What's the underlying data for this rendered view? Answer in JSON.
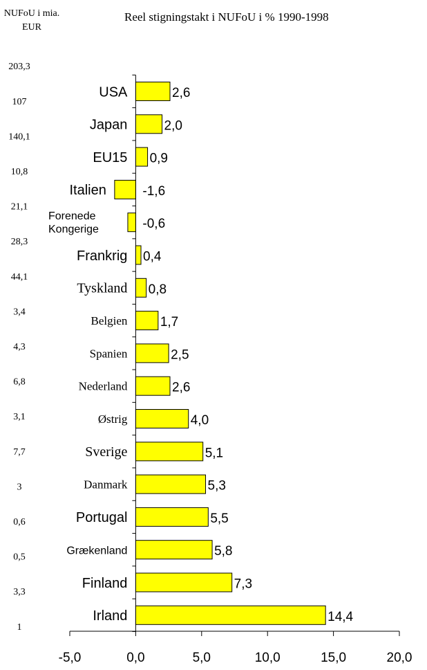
{
  "chart_data": {
    "type": "barh",
    "title": "Reel stigningstakt i NUFoU i % 1990-1998",
    "spending": {
      "title": [
        "NUFoU i mia.",
        "EUR"
      ],
      "values": [
        203.3,
        107,
        140.1,
        10.8,
        21.1,
        28.3,
        44.1,
        3.4,
        4.3,
        6.8,
        3.1,
        7.7,
        3,
        0.6,
        0.5,
        3.3,
        1
      ],
      "value_labels": [
        "203,3",
        "107",
        "140,1",
        "10,8",
        "21,1",
        "28,3",
        "44,1",
        "3,4",
        "4,3",
        "6,8",
        "3,1",
        "7,7",
        "3",
        "0,6",
        "0,5",
        "3,3",
        "1"
      ]
    },
    "categories": [
      "USA",
      "Japan",
      "EU15",
      "Italien",
      "Forenede Kongerige",
      "Frankrig",
      "Tyskland",
      "Belgien",
      "Spanien",
      "Nederland",
      "Østrig",
      "Sverige",
      "Danmark",
      "Portugal",
      "Grækenland",
      "Finland",
      "Irland"
    ],
    "values": [
      2.6,
      2.0,
      0.9,
      -1.6,
      -0.6,
      0.4,
      0.8,
      1.7,
      2.5,
      2.6,
      4.0,
      5.1,
      5.3,
      5.5,
      5.8,
      7.3,
      14.4
    ],
    "value_labels": [
      "2,6",
      "2,0",
      "0,9",
      "-1,6",
      "-0,6",
      "0,4",
      "0,8",
      "1,7",
      "2,5",
      "2,6",
      "4,0",
      "5,1",
      "5,3",
      "5,5",
      "5,8",
      "7,3",
      "14,4"
    ],
    "color": "#ffff00",
    "xlim": [
      -5,
      20
    ],
    "xticks": [
      {
        "value": -5,
        "label": "-5,0"
      },
      {
        "value": 0,
        "label": "0,0"
      },
      {
        "value": 5,
        "label": "5,0"
      },
      {
        "value": 10,
        "label": "10,0"
      },
      {
        "value": 15,
        "label": "15,0"
      },
      {
        "value": 20,
        "label": "20,0"
      }
    ]
  }
}
